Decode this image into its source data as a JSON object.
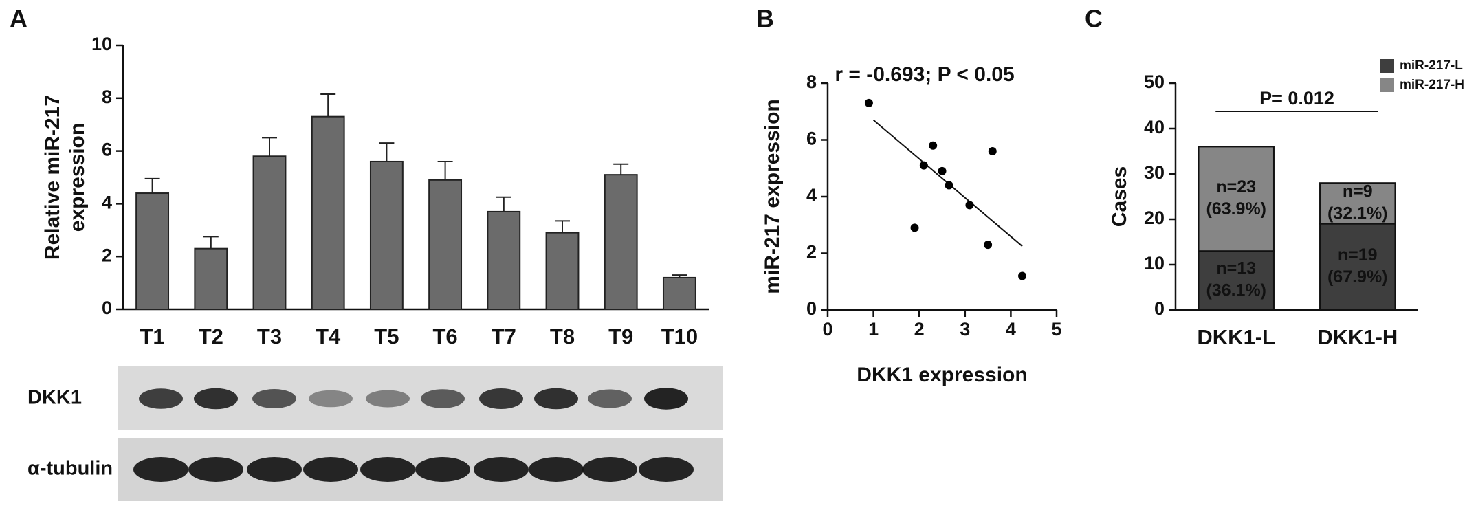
{
  "chart_data": [
    {
      "type": "bar",
      "panel": "A",
      "ylabel": [
        "Relative miR-217",
        "expression"
      ],
      "categories": [
        "T1",
        "T2",
        "T3",
        "T4",
        "T5",
        "T6",
        "T7",
        "T8",
        "T9",
        "T10"
      ],
      "values": [
        4.4,
        2.3,
        5.8,
        7.3,
        5.6,
        4.9,
        3.7,
        2.9,
        5.1,
        1.2
      ],
      "errors": [
        0.55,
        0.45,
        0.7,
        0.85,
        0.7,
        0.7,
        0.55,
        0.45,
        0.4,
        0.1
      ],
      "color": "#6b6b6b",
      "ylim": [
        0,
        10
      ],
      "yticks": [
        0,
        2,
        4,
        6,
        8,
        10
      ],
      "blot_labels": [
        "DKK1",
        "α-tubulin"
      ]
    },
    {
      "type": "scatter",
      "panel": "B",
      "annotation": "r = -0.693; P < 0.05",
      "xlabel": "DKK1 expression",
      "ylabel": "miR-217 expression",
      "x": [
        0.9,
        1.9,
        2.1,
        2.3,
        2.5,
        2.65,
        3.1,
        3.5,
        3.6,
        4.25
      ],
      "y": [
        7.3,
        2.9,
        5.1,
        5.8,
        4.9,
        4.4,
        3.7,
        2.3,
        5.6,
        1.2
      ],
      "color": "#000000",
      "trendline": {
        "x": [
          1,
          4.25
        ],
        "y": [
          6.7,
          2.25
        ]
      },
      "xlim": [
        0,
        5
      ],
      "xticks": [
        0,
        1,
        2,
        3,
        4,
        5
      ],
      "ylim": [
        0,
        8
      ],
      "yticks": [
        0,
        2,
        4,
        6,
        8
      ]
    },
    {
      "type": "stacked_bar",
      "panel": "C",
      "ylabel": "Cases",
      "annotation": "P= 0.012",
      "categories": [
        "DKK1-L",
        "DKK1-H"
      ],
      "series": [
        {
          "name": "miR-217-L",
          "color": "#3e3e3e",
          "values": [
            13,
            19
          ],
          "value_labels": [
            [
              "n=13",
              "(36.1%)"
            ],
            [
              "n=19",
              "(67.9%)"
            ]
          ]
        },
        {
          "name": "miR-217-H",
          "color": "#868686",
          "values": [
            23,
            9
          ],
          "value_labels": [
            [
              "n=23",
              "(63.9%)"
            ],
            [
              "n=9",
              "(32.1%)"
            ]
          ]
        }
      ],
      "ylim": [
        0,
        50
      ],
      "yticks": [
        0,
        10,
        20,
        30,
        40,
        50
      ],
      "legend": "top-right"
    }
  ]
}
